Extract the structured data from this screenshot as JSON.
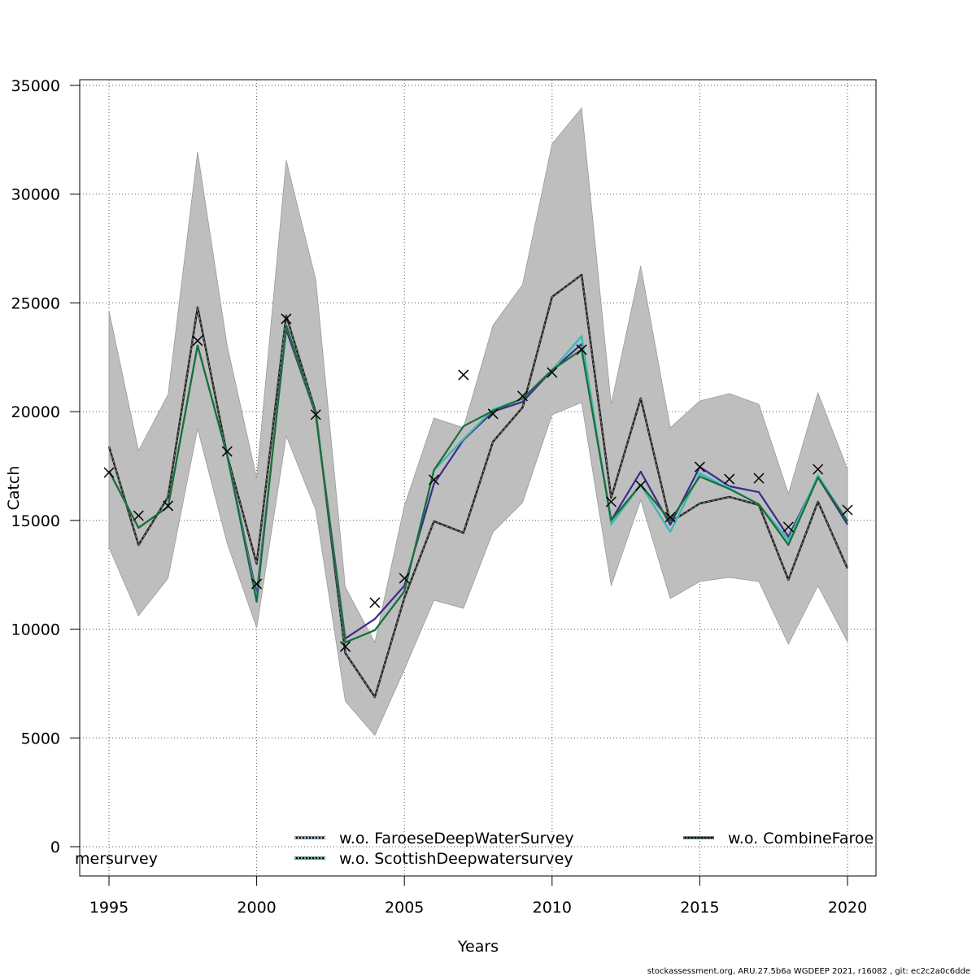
{
  "chart_data": {
    "type": "line",
    "title": "",
    "xlabel": "Years",
    "ylabel": "Catch",
    "xlim": [
      1994,
      2021
    ],
    "ylim": [
      -1300,
      35300
    ],
    "xticks": [
      1995,
      2000,
      2005,
      2010,
      2015,
      2020
    ],
    "yticks": [
      0,
      5000,
      10000,
      15000,
      20000,
      25000,
      30000,
      35000
    ],
    "grid": true,
    "x": [
      1995,
      1996,
      1997,
      1998,
      1999,
      2000,
      2001,
      2002,
      2003,
      2004,
      2005,
      2006,
      2007,
      2008,
      2009,
      2010,
      2011,
      2012,
      2013,
      2014,
      2015,
      2016,
      2017,
      2018,
      2019,
      2020
    ],
    "confidence_band": {
      "color": "#bebebe",
      "upper": [
        24640,
        18210,
        20790,
        31940,
        23040,
        16940,
        31560,
        26070,
        11930,
        9390,
        15670,
        19710,
        19260,
        23970,
        25840,
        32310,
        33960,
        20340,
        26700,
        19260,
        20490,
        20830,
        20340,
        16230,
        20870,
        17350
      ],
      "lower": [
        13760,
        10620,
        12340,
        19220,
        13950,
        10060,
        18890,
        15480,
        6690,
        5120,
        8150,
        11330,
        10960,
        14470,
        15820,
        19860,
        20420,
        12000,
        15930,
        11410,
        12190,
        12380,
        12190,
        9310,
        12000,
        9420
      ]
    },
    "estimate": {
      "color": "#222222",
      "values": [
        18400,
        13870,
        16080,
        24790,
        17990,
        13010,
        24420,
        19970,
        8900,
        6880,
        11440,
        14960,
        14430,
        18620,
        20190,
        25280,
        26290,
        16040,
        20610,
        14920,
        15780,
        16080,
        15710,
        12270,
        15860,
        12790
      ]
    },
    "observed": {
      "marker": "x",
      "color": "#000000",
      "values": [
        17200,
        15220,
        15670,
        23260,
        18170,
        12080,
        24270,
        19860,
        9200,
        11220,
        12340,
        16870,
        21690,
        19900,
        20720,
        21800,
        22850,
        15860,
        16600,
        15150,
        17460,
        16900,
        16940,
        14700,
        17350,
        15480
      ]
    },
    "series": [
      {
        "color": "#3a2a8c",
        "values": [
          17280,
          14660,
          15630,
          23040,
          17990,
          11600,
          23780,
          19860,
          9570,
          10470,
          12000,
          16680,
          18700,
          20000,
          20450,
          21900,
          23110,
          15000,
          17240,
          14800,
          17460,
          16570,
          16300,
          14250,
          16980,
          14810
        ]
      },
      {
        "name": "w.o. FaroeseDeepWaterSurvey",
        "color": "#6ec6e8",
        "values": [
          17280,
          14660,
          15630,
          23040,
          17990,
          11400,
          23970,
          19860,
          9400,
          9950,
          11740,
          17310,
          18740,
          20100,
          20600,
          21920,
          23400,
          14900,
          16640,
          14500,
          17200,
          16500,
          15740,
          14000,
          17100,
          14960
        ]
      },
      {
        "name": "w.o. ScottishDeepwatersurvey",
        "color": "#3fb8a8",
        "values": [
          17280,
          14660,
          15630,
          23040,
          17990,
          11300,
          23970,
          19860,
          9390,
          9950,
          11740,
          17310,
          18740,
          20100,
          20600,
          21920,
          23480,
          14810,
          16640,
          14470,
          17150,
          16450,
          15740,
          14100,
          17050,
          14960
        ]
      },
      {
        "name": "w.o. CombineFaroe",
        "color": "#1a6e35",
        "values": [
          17280,
          14660,
          15630,
          23040,
          17990,
          11260,
          23970,
          19860,
          9390,
          9950,
          11740,
          17310,
          19330,
          20040,
          20600,
          21920,
          22850,
          15000,
          16640,
          15000,
          17020,
          16450,
          15740,
          13870,
          16980,
          14960
        ]
      }
    ],
    "legend": {
      "placement": "bottom",
      "entries": [
        {
          "label": "mersurvey",
          "color": "#3a2a8c",
          "clipped": true
        },
        {
          "label": "w.o. FaroeseDeepWaterSurvey",
          "color": "#6ec6e8"
        },
        {
          "label": "w.o. ScottishDeepwatersurvey",
          "color": "#3fb8a8"
        },
        {
          "label": "w.o. CombineFaroe",
          "color": "#1a6e35",
          "clipped": true
        }
      ]
    }
  },
  "footer": "stockassessment.org, ARU.27.5b6a  WGDEEP  2021, r16082 , git: ec2c2a0c6dde"
}
